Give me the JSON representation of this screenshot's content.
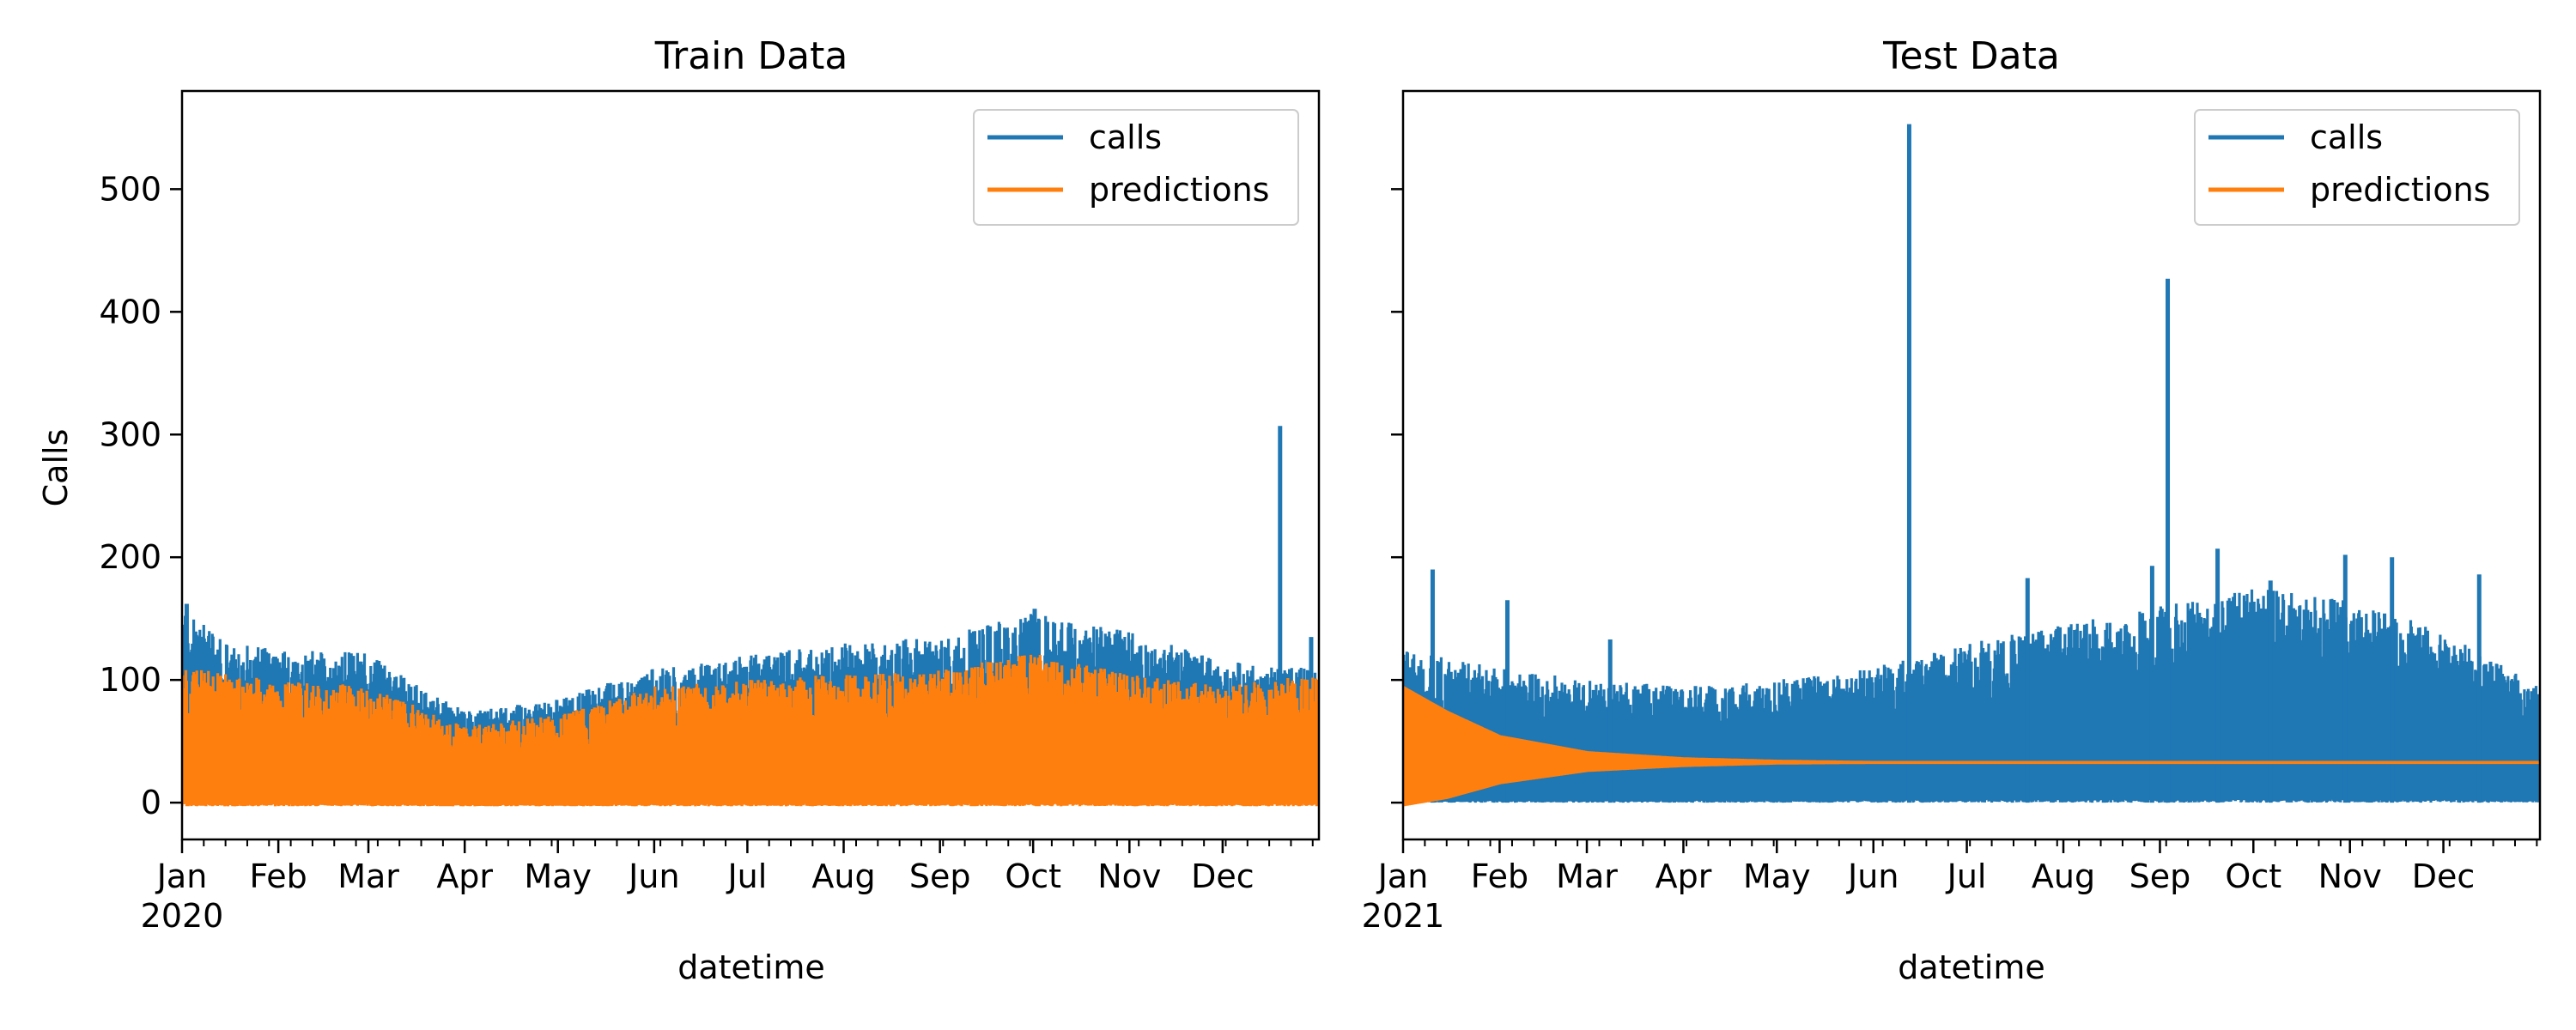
{
  "chart_data": [
    {
      "type": "line",
      "title": "Train Data",
      "xlabel": "datetime",
      "ylabel": "Calls",
      "x_range": [
        "2020-01-01",
        "2020-12-31"
      ],
      "ylim": [
        -30,
        580
      ],
      "y_ticks": [
        0,
        100,
        200,
        300,
        400,
        500
      ],
      "x_ticks": [
        {
          "date": "2020-01-01",
          "label": "Jan",
          "sublabel": "2020"
        },
        {
          "date": "2020-02-01",
          "label": "Feb"
        },
        {
          "date": "2020-03-01",
          "label": "Mar"
        },
        {
          "date": "2020-04-01",
          "label": "Apr"
        },
        {
          "date": "2020-05-01",
          "label": "May"
        },
        {
          "date": "2020-06-01",
          "label": "Jun"
        },
        {
          "date": "2020-07-01",
          "label": "Jul"
        },
        {
          "date": "2020-08-01",
          "label": "Aug"
        },
        {
          "date": "2020-09-01",
          "label": "Sep"
        },
        {
          "date": "2020-10-01",
          "label": "Oct"
        },
        {
          "date": "2020-11-01",
          "label": "Nov"
        },
        {
          "date": "2020-12-01",
          "label": "Dec"
        }
      ],
      "legend": {
        "placement": "upper right"
      },
      "series": [
        {
          "name": "calls",
          "color": "#1f77b4",
          "style": "dense band (daily min/max envelope)",
          "envelope": [
            {
              "x": "2020-01-01",
              "min": 0,
              "max": 160
            },
            {
              "x": "2020-01-15",
              "min": 0,
              "max": 130
            },
            {
              "x": "2020-02-01",
              "min": 0,
              "max": 125
            },
            {
              "x": "2020-03-01",
              "min": 0,
              "max": 122
            },
            {
              "x": "2020-03-20",
              "min": 0,
              "max": 90
            },
            {
              "x": "2020-04-01",
              "min": 0,
              "max": 75
            },
            {
              "x": "2020-05-01",
              "min": 0,
              "max": 85
            },
            {
              "x": "2020-06-01",
              "min": 0,
              "max": 110
            },
            {
              "x": "2020-07-01",
              "min": 0,
              "max": 120
            },
            {
              "x": "2020-08-01",
              "min": 0,
              "max": 130
            },
            {
              "x": "2020-09-01",
              "min": 0,
              "max": 135
            },
            {
              "x": "2020-10-01",
              "min": 0,
              "max": 155
            },
            {
              "x": "2020-11-01",
              "min": 0,
              "max": 140
            },
            {
              "x": "2020-12-01",
              "min": 0,
              "max": 115
            },
            {
              "x": "2020-12-31",
              "min": 0,
              "max": 110
            }
          ],
          "spikes": [
            {
              "x": "2020-12-19",
              "y": 307
            },
            {
              "x": "2020-10-01",
              "y": 158
            },
            {
              "x": "2020-01-02",
              "y": 162
            },
            {
              "x": "2020-12-29",
              "y": 135
            }
          ]
        },
        {
          "name": "predictions",
          "color": "#ff7f0e",
          "style": "dense band (daily min/max envelope)",
          "envelope": [
            {
              "x": "2020-01-01",
              "min": -3,
              "max": 110
            },
            {
              "x": "2020-02-01",
              "min": -3,
              "max": 100
            },
            {
              "x": "2020-03-01",
              "min": -3,
              "max": 95
            },
            {
              "x": "2020-04-01",
              "min": -3,
              "max": 62
            },
            {
              "x": "2020-05-01",
              "min": -3,
              "max": 72
            },
            {
              "x": "2020-06-01",
              "min": -3,
              "max": 95
            },
            {
              "x": "2020-07-01",
              "min": -3,
              "max": 100
            },
            {
              "x": "2020-08-01",
              "min": -3,
              "max": 105
            },
            {
              "x": "2020-09-01",
              "min": -3,
              "max": 108
            },
            {
              "x": "2020-10-01",
              "min": -3,
              "max": 122
            },
            {
              "x": "2020-11-01",
              "min": -3,
              "max": 105
            },
            {
              "x": "2020-12-01",
              "min": -3,
              "max": 95
            },
            {
              "x": "2020-12-31",
              "min": -3,
              "max": 105
            }
          ]
        }
      ]
    },
    {
      "type": "line",
      "title": "Test Data",
      "xlabel": "datetime",
      "ylabel": "",
      "x_range": [
        "2021-01-01",
        "2021-12-31"
      ],
      "ylim": [
        -30,
        580
      ],
      "y_ticks": [
        0,
        100,
        200,
        300,
        400,
        500
      ],
      "x_ticks": [
        {
          "date": "2021-01-01",
          "label": "Jan",
          "sublabel": "2021"
        },
        {
          "date": "2021-02-01",
          "label": "Feb"
        },
        {
          "date": "2021-03-01",
          "label": "Mar"
        },
        {
          "date": "2021-04-01",
          "label": "Apr"
        },
        {
          "date": "2021-05-01",
          "label": "May"
        },
        {
          "date": "2021-06-01",
          "label": "Jun"
        },
        {
          "date": "2021-07-01",
          "label": "Jul"
        },
        {
          "date": "2021-08-01",
          "label": "Aug"
        },
        {
          "date": "2021-09-01",
          "label": "Sep"
        },
        {
          "date": "2021-10-01",
          "label": "Oct"
        },
        {
          "date": "2021-11-01",
          "label": "Nov"
        },
        {
          "date": "2021-12-01",
          "label": "Dec"
        }
      ],
      "legend": {
        "placement": "upper right"
      },
      "series": [
        {
          "name": "calls",
          "color": "#1f77b4",
          "style": "dense band (daily min/max envelope)",
          "envelope": [
            {
              "x": "2021-01-01",
              "min": 0,
              "max": 125
            },
            {
              "x": "2021-02-01",
              "min": 0,
              "max": 110
            },
            {
              "x": "2021-03-01",
              "min": 0,
              "max": 100
            },
            {
              "x": "2021-04-01",
              "min": 0,
              "max": 95
            },
            {
              "x": "2021-05-01",
              "min": 0,
              "max": 100
            },
            {
              "x": "2021-06-01",
              "min": 0,
              "max": 110
            },
            {
              "x": "2021-07-01",
              "min": 0,
              "max": 130
            },
            {
              "x": "2021-08-01",
              "min": 0,
              "max": 145
            },
            {
              "x": "2021-09-01",
              "min": 0,
              "max": 160
            },
            {
              "x": "2021-10-01",
              "min": 0,
              "max": 175
            },
            {
              "x": "2021-11-01",
              "min": 0,
              "max": 165
            },
            {
              "x": "2021-12-01",
              "min": 0,
              "max": 140
            },
            {
              "x": "2021-12-31",
              "min": 0,
              "max": 95
            }
          ],
          "spikes": [
            {
              "x": "2021-06-12",
              "y": 553
            },
            {
              "x": "2021-09-03",
              "y": 427
            },
            {
              "x": "2021-01-10",
              "y": 190
            },
            {
              "x": "2021-02-03",
              "y": 165
            },
            {
              "x": "2021-03-08",
              "y": 133
            },
            {
              "x": "2021-07-20",
              "y": 183
            },
            {
              "x": "2021-08-29",
              "y": 193
            },
            {
              "x": "2021-09-19",
              "y": 207
            },
            {
              "x": "2021-10-06",
              "y": 181
            },
            {
              "x": "2021-10-30",
              "y": 202
            },
            {
              "x": "2021-11-14",
              "y": 200
            },
            {
              "x": "2021-12-12",
              "y": 186
            }
          ]
        },
        {
          "name": "predictions",
          "color": "#ff7f0e",
          "style": "converging forecast band",
          "envelope": [
            {
              "x": "2021-01-01",
              "min": -3,
              "max": 95
            },
            {
              "x": "2021-01-15",
              "min": 3,
              "max": 75
            },
            {
              "x": "2021-02-01",
              "min": 15,
              "max": 55
            },
            {
              "x": "2021-03-01",
              "min": 25,
              "max": 42
            },
            {
              "x": "2021-04-01",
              "min": 29,
              "max": 37
            },
            {
              "x": "2021-05-01",
              "min": 31,
              "max": 35
            },
            {
              "x": "2021-06-01",
              "min": 31.5,
              "max": 34
            },
            {
              "x": "2021-12-31",
              "min": 31.5,
              "max": 34
            }
          ]
        }
      ]
    }
  ]
}
